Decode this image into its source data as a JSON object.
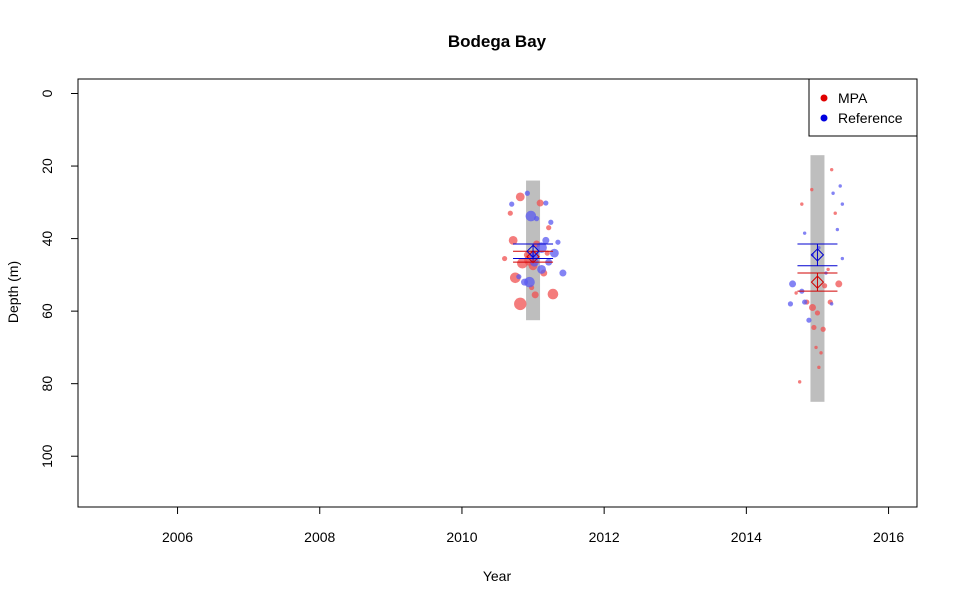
{
  "chart_data": {
    "type": "scatter",
    "title": "Bodega Bay",
    "xlabel": "Year",
    "ylabel": "Depth (m)",
    "xlim": [
      2004.6,
      2016.4
    ],
    "ylim": [
      114,
      -4
    ],
    "x_ticks": [
      2006,
      2008,
      2010,
      2012,
      2014,
      2016
    ],
    "y_ticks": [
      0,
      20,
      40,
      60,
      80,
      100
    ],
    "y_inverted": true,
    "legend_position": "top-right",
    "legend": [
      {
        "label": "MPA",
        "color": "#e00000"
      },
      {
        "label": "Reference",
        "color": "#0000e0"
      }
    ],
    "depth_ranges": [
      {
        "x": 2011,
        "ymin": 24,
        "ymax": 62.5
      },
      {
        "x": 2015,
        "ymin": 17,
        "ymax": 85
      }
    ],
    "series": [
      {
        "name": "MPA",
        "color": "#f05050",
        "points": [
          {
            "x": 2010.82,
            "y": 28.5,
            "s": 4
          },
          {
            "x": 2011.1,
            "y": 30.2,
            "s": 3
          },
          {
            "x": 2010.68,
            "y": 33,
            "s": 2
          },
          {
            "x": 2011.22,
            "y": 37,
            "s": 2
          },
          {
            "x": 2010.72,
            "y": 40.5,
            "s": 4
          },
          {
            "x": 2011.05,
            "y": 41.5,
            "s": 3
          },
          {
            "x": 2010.92,
            "y": 44.5,
            "s": 3
          },
          {
            "x": 2010.85,
            "y": 46.8,
            "s": 5
          },
          {
            "x": 2011.0,
            "y": 47.5,
            "s": 4
          },
          {
            "x": 2010.95,
            "y": 46,
            "s": 5
          },
          {
            "x": 2011.15,
            "y": 49.5,
            "s": 3
          },
          {
            "x": 2010.75,
            "y": 50.8,
            "s": 5
          },
          {
            "x": 2011.03,
            "y": 55.5,
            "s": 3
          },
          {
            "x": 2011.28,
            "y": 55.3,
            "s": 5
          },
          {
            "x": 2010.82,
            "y": 58,
            "s": 6
          },
          {
            "x": 2010.6,
            "y": 45.5,
            "s": 2
          },
          {
            "x": 2011.2,
            "y": 44,
            "s": 2
          },
          {
            "x": 2010.98,
            "y": 53.5,
            "s": 2
          },
          {
            "x": 2014.78,
            "y": 30.5,
            "s": 1
          },
          {
            "x": 2014.92,
            "y": 26.5,
            "s": 1
          },
          {
            "x": 2015.2,
            "y": 21,
            "s": 1
          },
          {
            "x": 2015.25,
            "y": 33,
            "s": 1
          },
          {
            "x": 2014.7,
            "y": 55,
            "s": 1
          },
          {
            "x": 2014.85,
            "y": 57.5,
            "s": 2
          },
          {
            "x": 2014.93,
            "y": 59,
            "s": 3
          },
          {
            "x": 2015.0,
            "y": 60.5,
            "s": 2
          },
          {
            "x": 2015.1,
            "y": 53,
            "s": 2
          },
          {
            "x": 2015.3,
            "y": 52.5,
            "s": 3
          },
          {
            "x": 2015.18,
            "y": 57.5,
            "s": 2
          },
          {
            "x": 2014.95,
            "y": 64.5,
            "s": 2
          },
          {
            "x": 2015.08,
            "y": 65,
            "s": 2
          },
          {
            "x": 2014.98,
            "y": 70,
            "s": 1
          },
          {
            "x": 2015.05,
            "y": 71.5,
            "s": 1
          },
          {
            "x": 2015.02,
            "y": 75.5,
            "s": 1
          },
          {
            "x": 2014.75,
            "y": 79.5,
            "s": 1
          },
          {
            "x": 2015.15,
            "y": 48.5,
            "s": 1
          }
        ]
      },
      {
        "name": "Reference",
        "color": "#5a5af0",
        "points": [
          {
            "x": 2010.92,
            "y": 27.5,
            "s": 2
          },
          {
            "x": 2010.7,
            "y": 30.5,
            "s": 2
          },
          {
            "x": 2011.18,
            "y": 30.2,
            "s": 2
          },
          {
            "x": 2010.97,
            "y": 33.8,
            "s": 5
          },
          {
            "x": 2011.05,
            "y": 34.5,
            "s": 2
          },
          {
            "x": 2011.25,
            "y": 35.5,
            "s": 2
          },
          {
            "x": 2011.18,
            "y": 40.5,
            "s": 3
          },
          {
            "x": 2011.35,
            "y": 41,
            "s": 2
          },
          {
            "x": 2011.12,
            "y": 42.5,
            "s": 5
          },
          {
            "x": 2011.3,
            "y": 44,
            "s": 4
          },
          {
            "x": 2011.02,
            "y": 44.5,
            "s": 4
          },
          {
            "x": 2011.22,
            "y": 46.5,
            "s": 3
          },
          {
            "x": 2011.12,
            "y": 48.5,
            "s": 4
          },
          {
            "x": 2011.42,
            "y": 49.5,
            "s": 3
          },
          {
            "x": 2010.88,
            "y": 52,
            "s": 3
          },
          {
            "x": 2010.95,
            "y": 52,
            "s": 5
          },
          {
            "x": 2011.02,
            "y": 46.5,
            "s": 4
          },
          {
            "x": 2010.8,
            "y": 50.5,
            "s": 2
          },
          {
            "x": 2015.32,
            "y": 25.5,
            "s": 1
          },
          {
            "x": 2015.22,
            "y": 27.5,
            "s": 1
          },
          {
            "x": 2015.35,
            "y": 30.5,
            "s": 1
          },
          {
            "x": 2015.28,
            "y": 37.5,
            "s": 1
          },
          {
            "x": 2014.82,
            "y": 38.5,
            "s": 1
          },
          {
            "x": 2015.35,
            "y": 45.5,
            "s": 1
          },
          {
            "x": 2014.93,
            "y": 44.5,
            "s": 1
          },
          {
            "x": 2015.02,
            "y": 42.5,
            "s": 1
          },
          {
            "x": 2014.65,
            "y": 52.5,
            "s": 3
          },
          {
            "x": 2014.78,
            "y": 54.5,
            "s": 2
          },
          {
            "x": 2014.62,
            "y": 58,
            "s": 2
          },
          {
            "x": 2014.82,
            "y": 57.5,
            "s": 2
          },
          {
            "x": 2014.88,
            "y": 62.5,
            "s": 2
          },
          {
            "x": 2015.2,
            "y": 58,
            "s": 1
          },
          {
            "x": 2015.12,
            "y": 49.5,
            "s": 1
          }
        ]
      }
    ],
    "means": [
      {
        "series": "MPA",
        "x": 2011,
        "mean": 45,
        "lower": 43.5,
        "upper": 46.5,
        "color": "#d00000"
      },
      {
        "series": "Reference",
        "x": 2011,
        "mean": 43.5,
        "lower": 41.5,
        "upper": 45.5,
        "color": "#0000d0"
      },
      {
        "series": "MPA",
        "x": 2015,
        "mean": 52,
        "lower": 49.5,
        "upper": 54.5,
        "color": "#d00000"
      },
      {
        "series": "Reference",
        "x": 2015,
        "mean": 44.5,
        "lower": 41.5,
        "upper": 47.5,
        "color": "#0000d0"
      }
    ]
  }
}
